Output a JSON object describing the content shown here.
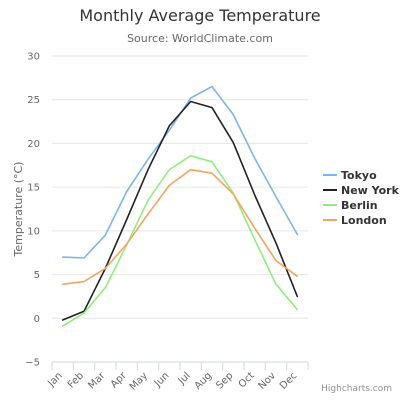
{
  "chart_data": {
    "type": "line",
    "title": "Monthly Average Temperature",
    "subtitle": "Source: WorldClimate.com",
    "xlabel": "",
    "ylabel": "Temperature (°C)",
    "categories": [
      "Jan",
      "Feb",
      "Mar",
      "Apr",
      "May",
      "Jun",
      "Jul",
      "Aug",
      "Sep",
      "Oct",
      "Nov",
      "Dec"
    ],
    "ylim": [
      -5,
      30
    ],
    "yticks": [
      -5,
      0,
      5,
      10,
      15,
      20,
      25,
      30
    ],
    "ytick_labels": [
      "−5",
      "0",
      "5",
      "10",
      "15",
      "20",
      "25",
      "30"
    ],
    "grid": true,
    "legend_position": "right",
    "series": [
      {
        "name": "Tokyo",
        "color": "#7cb5ec",
        "values": [
          7.0,
          6.9,
          9.5,
          14.5,
          18.2,
          21.5,
          25.2,
          26.5,
          23.3,
          18.3,
          13.9,
          9.6
        ]
      },
      {
        "name": "New York",
        "color": "#222222",
        "values": [
          -0.2,
          0.8,
          5.7,
          11.3,
          17.0,
          22.0,
          24.8,
          24.1,
          20.1,
          14.1,
          8.6,
          2.5
        ]
      },
      {
        "name": "Berlin",
        "color": "#90ed7d",
        "values": [
          -0.9,
          0.6,
          3.5,
          8.4,
          13.5,
          17.0,
          18.6,
          17.9,
          14.3,
          9.0,
          3.9,
          1.0
        ]
      },
      {
        "name": "London",
        "color": "#f7a35c",
        "values": [
          3.9,
          4.2,
          5.7,
          8.5,
          11.9,
          15.2,
          17.0,
          16.6,
          14.2,
          10.3,
          6.6,
          4.8
        ]
      }
    ]
  },
  "credits": "Highcharts.com"
}
